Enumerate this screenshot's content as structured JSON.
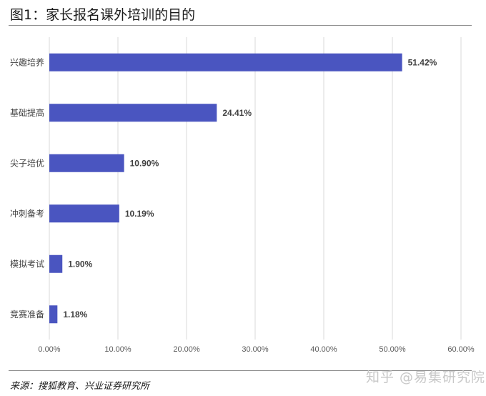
{
  "title": "图1：家长报名课外培训的目的",
  "source": "来源：搜狐教育、兴业证券研究所",
  "watermark": "知乎 @易集研究院",
  "chart_data": {
    "type": "bar",
    "orientation": "horizontal",
    "title": "图1：家长报名课外培训的目的",
    "categories": [
      "兴趣培养",
      "基础提高",
      "尖子培优",
      "冲刺备考",
      "模拟考试",
      "竞赛准备"
    ],
    "values": [
      51.42,
      24.41,
      10.9,
      10.19,
      1.9,
      1.18
    ],
    "value_labels": [
      "51.42%",
      "24.41%",
      "10.90%",
      "10.19%",
      "1.90%",
      "1.18%"
    ],
    "xlim": [
      0,
      60
    ],
    "x_ticks": [
      0,
      10,
      20,
      30,
      40,
      50,
      60
    ],
    "x_tick_labels": [
      "0.00%",
      "10.00%",
      "20.00%",
      "30.00%",
      "40.00%",
      "50.00%",
      "60.00%"
    ],
    "xlabel": "",
    "ylabel": "",
    "grid": "vertical",
    "legend": "none",
    "bar_color": "#4a55c0"
  }
}
